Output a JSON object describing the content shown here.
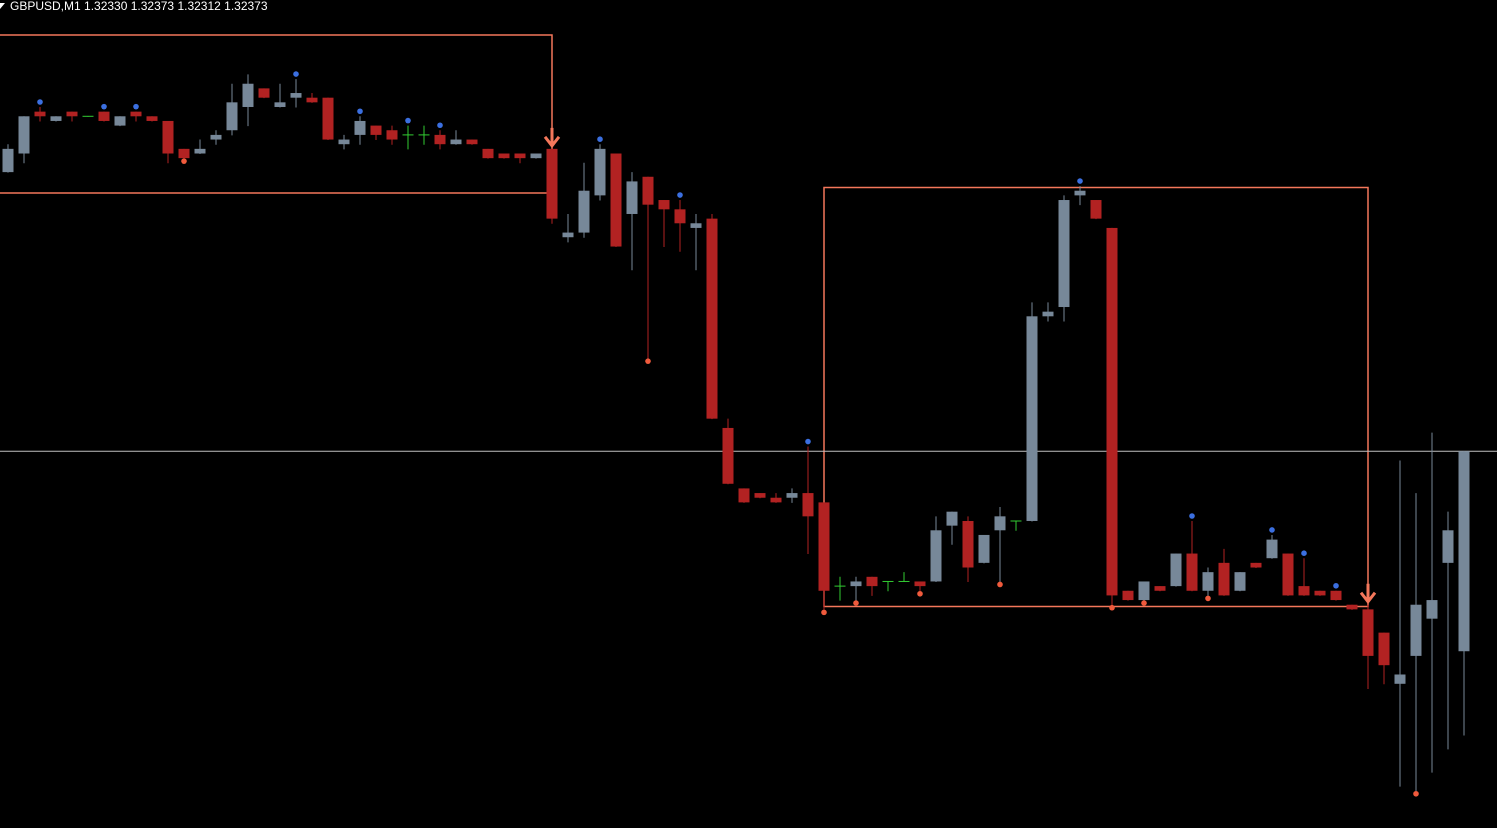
{
  "chart_data": {
    "type": "candlestick",
    "title": "GBPUSD,M1  1.32330 1.32373 1.32312 1.32373",
    "open": [
      1.32433,
      1.32437,
      1.32446,
      1.32444,
      1.32446,
      1.32445,
      1.32446,
      1.32443,
      1.32446,
      1.32445,
      1.32444,
      1.32438,
      1.32437,
      1.3244,
      1.32442,
      1.32447,
      1.32451,
      1.32447,
      1.32449,
      1.32449,
      1.32449,
      1.32439,
      1.32441,
      1.32443,
      1.32442,
      1.32441,
      1.32441,
      1.32441,
      1.32439,
      1.3244,
      1.32438,
      1.32437,
      1.32437,
      1.32436,
      1.32438,
      1.32419,
      1.3242,
      1.32428,
      1.32437,
      1.32424,
      1.32432,
      1.32427,
      1.32425,
      1.32421,
      1.32423,
      1.32378,
      1.32365,
      1.32364,
      1.32363,
      1.32363,
      1.32364,
      1.32362,
      1.32344,
      1.32344,
      1.32346,
      1.32345,
      1.32345,
      1.32345,
      1.32345,
      1.32357,
      1.32358,
      1.32349,
      1.32356,
      1.32358,
      1.32358,
      1.32402,
      1.32404,
      1.32428,
      1.32427,
      1.32421,
      1.32343,
      1.32341,
      1.32344,
      1.32344,
      1.32351,
      1.32343,
      1.32349,
      1.32343,
      1.32349,
      1.3235,
      1.32351,
      1.32344,
      1.32343,
      1.32343,
      1.3234,
      1.32339,
      1.32334,
      1.32323,
      1.32329,
      1.32337,
      1.32349,
      1.3233
    ],
    "high": [
      1.32439,
      1.32445,
      1.32447,
      1.32445,
      1.32446,
      1.32445,
      1.32446,
      1.32445,
      1.32446,
      1.32445,
      1.32444,
      1.32438,
      1.3244,
      1.32442,
      1.32452,
      1.32454,
      1.32451,
      1.32452,
      1.32453,
      1.3245,
      1.32449,
      1.32441,
      1.32445,
      1.32443,
      1.32443,
      1.32443,
      1.32443,
      1.32442,
      1.32442,
      1.3244,
      1.32438,
      1.32437,
      1.32437,
      1.32437,
      1.32438,
      1.32424,
      1.32435,
      1.32439,
      1.32437,
      1.32433,
      1.32432,
      1.32427,
      1.32427,
      1.32424,
      1.32424,
      1.3238,
      1.32365,
      1.32364,
      1.32364,
      1.32365,
      1.32374,
      1.32362,
      1.32346,
      1.32346,
      1.32346,
      1.32345,
      1.32347,
      1.32345,
      1.32359,
      1.3236,
      1.32359,
      1.32355,
      1.32361,
      1.32358,
      1.32405,
      1.32405,
      1.32428,
      1.3243,
      1.32427,
      1.32421,
      1.32343,
      1.32345,
      1.32344,
      1.32351,
      1.32358,
      1.32348,
      1.32352,
      1.32347,
      1.32349,
      1.32355,
      1.32351,
      1.3235,
      1.32343,
      1.32343,
      1.3234,
      1.3234,
      1.32334,
      1.32371,
      1.32364,
      1.32377,
      1.3236,
      1.32373
    ],
    "low": [
      1.32433,
      1.32435,
      1.32444,
      1.32444,
      1.32444,
      1.32445,
      1.32444,
      1.32443,
      1.32444,
      1.32444,
      1.32435,
      1.32436,
      1.32437,
      1.32439,
      1.32441,
      1.32443,
      1.32449,
      1.32447,
      1.32447,
      1.32448,
      1.3244,
      1.32438,
      1.32439,
      1.3244,
      1.32439,
      1.32438,
      1.32439,
      1.32438,
      1.32439,
      1.32439,
      1.32436,
      1.32436,
      1.32435,
      1.32436,
      1.32422,
      1.32418,
      1.32419,
      1.32427,
      1.32417,
      1.32412,
      1.32393,
      1.32417,
      1.32416,
      1.32412,
      1.3238,
      1.32366,
      1.32362,
      1.32363,
      1.32362,
      1.32362,
      1.32351,
      1.32339,
      1.32341,
      1.32341,
      1.32342,
      1.32343,
      1.32345,
      1.32343,
      1.32345,
      1.32353,
      1.32345,
      1.32349,
      1.32345,
      1.32356,
      1.32358,
      1.32401,
      1.32401,
      1.32426,
      1.32423,
      1.3234,
      1.32341,
      1.32341,
      1.32343,
      1.32344,
      1.32343,
      1.32342,
      1.32342,
      1.32343,
      1.32348,
      1.3235,
      1.32342,
      1.32342,
      1.32342,
      1.32341,
      1.32339,
      1.32322,
      1.32323,
      1.32301,
      1.323,
      1.32304,
      1.32309,
      1.32312
    ],
    "close": [
      1.32438,
      1.32445,
      1.32445,
      1.32445,
      1.32445,
      1.32445,
      1.32444,
      1.32445,
      1.32445,
      1.32444,
      1.32437,
      1.32436,
      1.32438,
      1.32441,
      1.32448,
      1.32452,
      1.32449,
      1.32448,
      1.3245,
      1.32448,
      1.3244,
      1.3244,
      1.32444,
      1.32441,
      1.3244,
      1.32441,
      1.32441,
      1.32439,
      1.3244,
      1.32439,
      1.32436,
      1.32436,
      1.32436,
      1.32437,
      1.32423,
      1.3242,
      1.32429,
      1.32438,
      1.32417,
      1.32431,
      1.32426,
      1.32425,
      1.32422,
      1.32422,
      1.3238,
      1.32366,
      1.32362,
      1.32363,
      1.32362,
      1.32364,
      1.32359,
      1.32343,
      1.32344,
      1.32345,
      1.32344,
      1.32345,
      1.32345,
      1.32344,
      1.32356,
      1.3236,
      1.32348,
      1.32355,
      1.32359,
      1.32358,
      1.32402,
      1.32403,
      1.32427,
      1.32429,
      1.32423,
      1.32342,
      1.32341,
      1.32345,
      1.32343,
      1.32351,
      1.32343,
      1.32347,
      1.32342,
      1.32347,
      1.32348,
      1.32354,
      1.32342,
      1.32342,
      1.32342,
      1.32341,
      1.32339,
      1.32329,
      1.32327,
      1.32325,
      1.3234,
      1.32341,
      1.32356,
      1.32373
    ],
    "ylim": [
      1.32292,
      1.3247
    ],
    "colors": {
      "up": "#778899",
      "down": "#b22222",
      "doji": "#32cd32",
      "marker_above": "#3b6fe0",
      "marker_below": "#f05a3c",
      "signal": "#f4775b",
      "price_line": "#c0c0c0"
    },
    "markers": {
      "above": [
        2,
        6,
        8,
        18,
        22,
        25,
        27,
        37,
        42,
        50,
        67,
        74,
        79,
        81,
        83
      ],
      "below": [
        11,
        40,
        51,
        53,
        57,
        62,
        69,
        71,
        75,
        88
      ]
    },
    "signals": [
      34,
      85
    ]
  }
}
